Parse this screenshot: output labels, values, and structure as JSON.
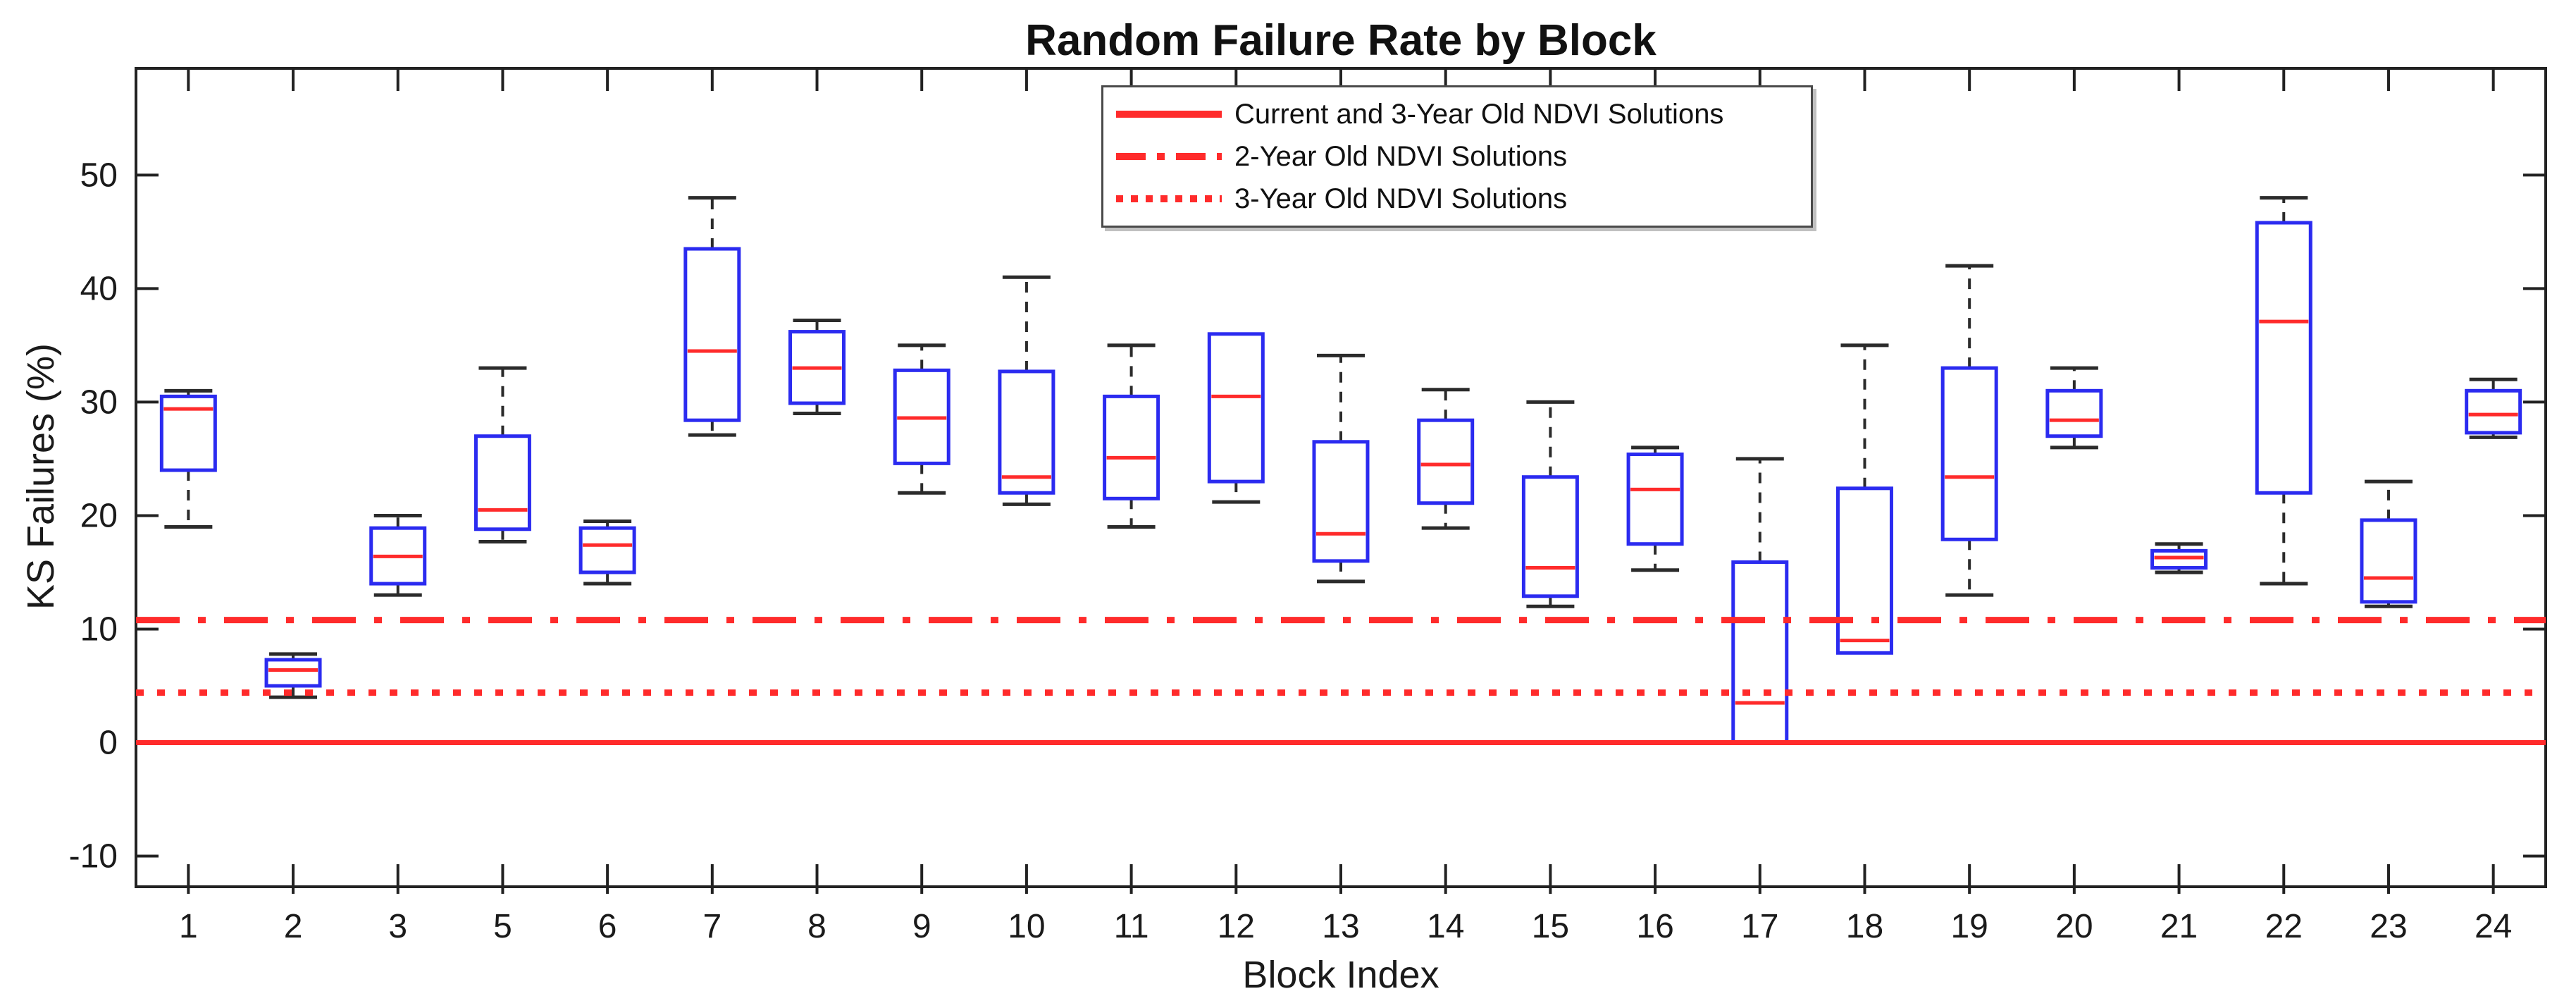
{
  "chart_data": {
    "type": "box",
    "title": "Random Failure Rate by Block",
    "xlabel": "Block Index",
    "ylabel": "KS Failures (%)",
    "ylim": [
      -12.7,
      59.4
    ],
    "yticks": [
      -10,
      0,
      10,
      20,
      30,
      40,
      50
    ],
    "grid": false,
    "legend_position": "top-center",
    "categories": [
      "1",
      "2",
      "3",
      "5",
      "6",
      "7",
      "8",
      "9",
      "10",
      "11",
      "12",
      "13",
      "14",
      "15",
      "16",
      "17",
      "18",
      "19",
      "20",
      "21",
      "22",
      "23",
      "24"
    ],
    "boxes": [
      {
        "block": "1",
        "whisker_low": 19.0,
        "q1": 24.0,
        "median": 29.4,
        "q3": 30.5,
        "whisker_high": 31.0
      },
      {
        "block": "2",
        "whisker_low": 4.0,
        "q1": 5.0,
        "median": 6.4,
        "q3": 7.3,
        "whisker_high": 7.8
      },
      {
        "block": "3",
        "whisker_low": 13.0,
        "q1": 14.0,
        "median": 16.4,
        "q3": 18.9,
        "whisker_high": 20.0
      },
      {
        "block": "5",
        "whisker_low": 17.7,
        "q1": 18.8,
        "median": 20.5,
        "q3": 27.0,
        "whisker_high": 33.0
      },
      {
        "block": "6",
        "whisker_low": 14.0,
        "q1": 15.0,
        "median": 17.4,
        "q3": 18.9,
        "whisker_high": 19.5
      },
      {
        "block": "7",
        "whisker_low": 27.1,
        "q1": 28.4,
        "median": 34.5,
        "q3": 43.5,
        "whisker_high": 48.0
      },
      {
        "block": "8",
        "whisker_low": 29.0,
        "q1": 29.9,
        "median": 33.0,
        "q3": 36.2,
        "whisker_high": 37.2
      },
      {
        "block": "9",
        "whisker_low": 22.0,
        "q1": 24.6,
        "median": 28.6,
        "q3": 32.8,
        "whisker_high": 35.0
      },
      {
        "block": "10",
        "whisker_low": 21.0,
        "q1": 22.0,
        "median": 23.4,
        "q3": 32.7,
        "whisker_high": 41.0
      },
      {
        "block": "11",
        "whisker_low": 19.0,
        "q1": 21.5,
        "median": 25.1,
        "q3": 30.5,
        "whisker_high": 35.0
      },
      {
        "block": "12",
        "whisker_low": 21.2,
        "q1": 23.0,
        "median": 30.5,
        "q3": 36.0,
        "whisker_high": 36.0
      },
      {
        "block": "13",
        "whisker_low": 14.2,
        "q1": 16.0,
        "median": 18.4,
        "q3": 26.5,
        "whisker_high": 34.1
      },
      {
        "block": "14",
        "whisker_low": 18.9,
        "q1": 21.1,
        "median": 24.5,
        "q3": 28.4,
        "whisker_high": 31.1
      },
      {
        "block": "15",
        "whisker_low": 12.0,
        "q1": 12.9,
        "median": 15.4,
        "q3": 23.4,
        "whisker_high": 30.0
      },
      {
        "block": "16",
        "whisker_low": 15.2,
        "q1": 17.5,
        "median": 22.3,
        "q3": 25.4,
        "whisker_high": 26.0
      },
      {
        "block": "17",
        "whisker_low": 0.0,
        "q1": 0.0,
        "median": 3.5,
        "q3": 15.9,
        "whisker_high": 25.0
      },
      {
        "block": "18",
        "whisker_low": 7.9,
        "q1": 7.9,
        "median": 9.0,
        "q3": 22.4,
        "whisker_high": 35.0
      },
      {
        "block": "19",
        "whisker_low": 13.0,
        "q1": 17.9,
        "median": 23.4,
        "q3": 33.0,
        "whisker_high": 42.0
      },
      {
        "block": "20",
        "whisker_low": 26.0,
        "q1": 27.0,
        "median": 28.4,
        "q3": 31.0,
        "whisker_high": 33.0
      },
      {
        "block": "21",
        "whisker_low": 15.0,
        "q1": 15.4,
        "median": 16.3,
        "q3": 16.9,
        "whisker_high": 17.5
      },
      {
        "block": "22",
        "whisker_low": 14.0,
        "q1": 22.0,
        "median": 37.1,
        "q3": 45.8,
        "whisker_high": 48.0
      },
      {
        "block": "23",
        "whisker_low": 12.0,
        "q1": 12.4,
        "median": 14.5,
        "q3": 19.6,
        "whisker_high": 23.0
      },
      {
        "block": "24",
        "whisker_low": 26.9,
        "q1": 27.3,
        "median": 28.9,
        "q3": 31.0,
        "whisker_high": 32.0
      }
    ],
    "reference_lines": [
      {
        "label": "Current and 3-Year Old NDVI Solutions",
        "value": 0,
        "style": "solid"
      },
      {
        "label": "2-Year Old NDVI Solutions",
        "value": 10.8,
        "style": "dash-dot"
      },
      {
        "label": "3-Year Old NDVI Solutions",
        "value": 4.4,
        "style": "dotted"
      }
    ],
    "colors": {
      "box_edge": "#2b2bf0",
      "median": "#ff2b2b",
      "whisker": "#2b2b2b",
      "reference": "#ff2b2b",
      "frame": "#222222"
    }
  }
}
